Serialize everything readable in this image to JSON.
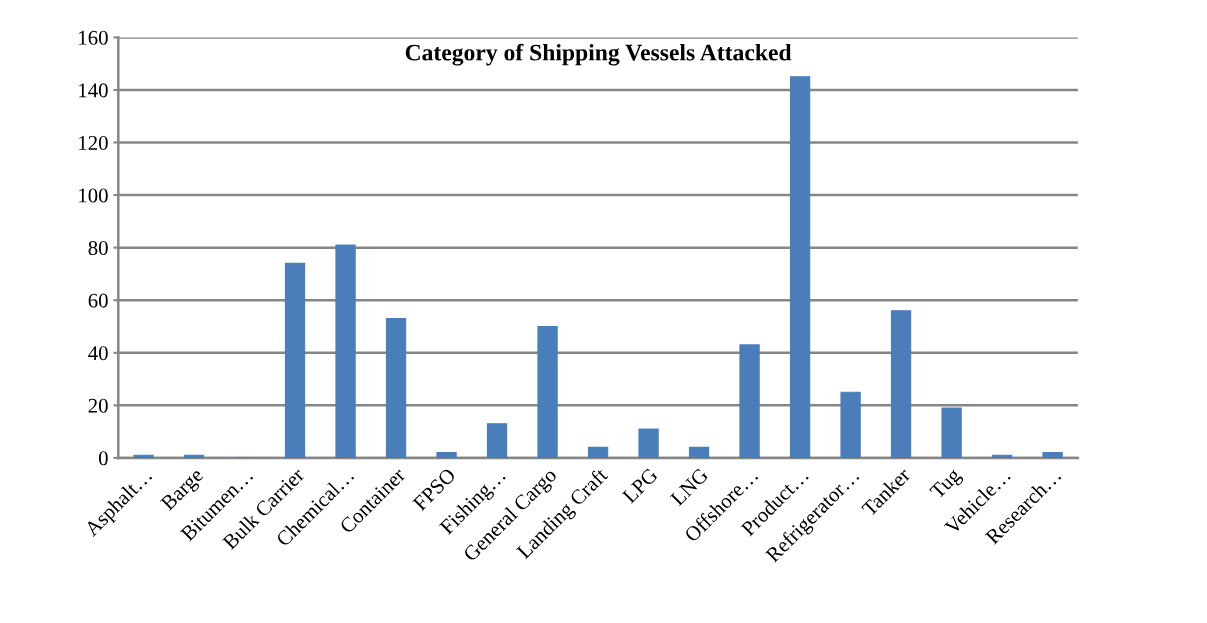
{
  "chart_data": {
    "type": "bar",
    "title": "Category of Shipping Vessels Attacked",
    "categories": [
      "Asphalt…",
      "Barge",
      "Bitumen…",
      "Bulk Carrier",
      "Chemical…",
      "Container",
      "FPSO",
      "Fishing…",
      "General Cargo",
      "Landing Craft",
      "LPG",
      "LNG",
      "Offshore…",
      "Product…",
      "Refrigerator…",
      "Tanker",
      "Tug",
      "Vehicle…",
      "Research…"
    ],
    "values": [
      1,
      1,
      0,
      74,
      81,
      53,
      2,
      13,
      50,
      4,
      11,
      4,
      43,
      145,
      25,
      56,
      19,
      1,
      2
    ],
    "color": "#4a7ebb",
    "ylim": [
      0,
      160
    ],
    "yticks": [
      0,
      20,
      40,
      60,
      80,
      100,
      120,
      140,
      160
    ],
    "grid": "y"
  }
}
